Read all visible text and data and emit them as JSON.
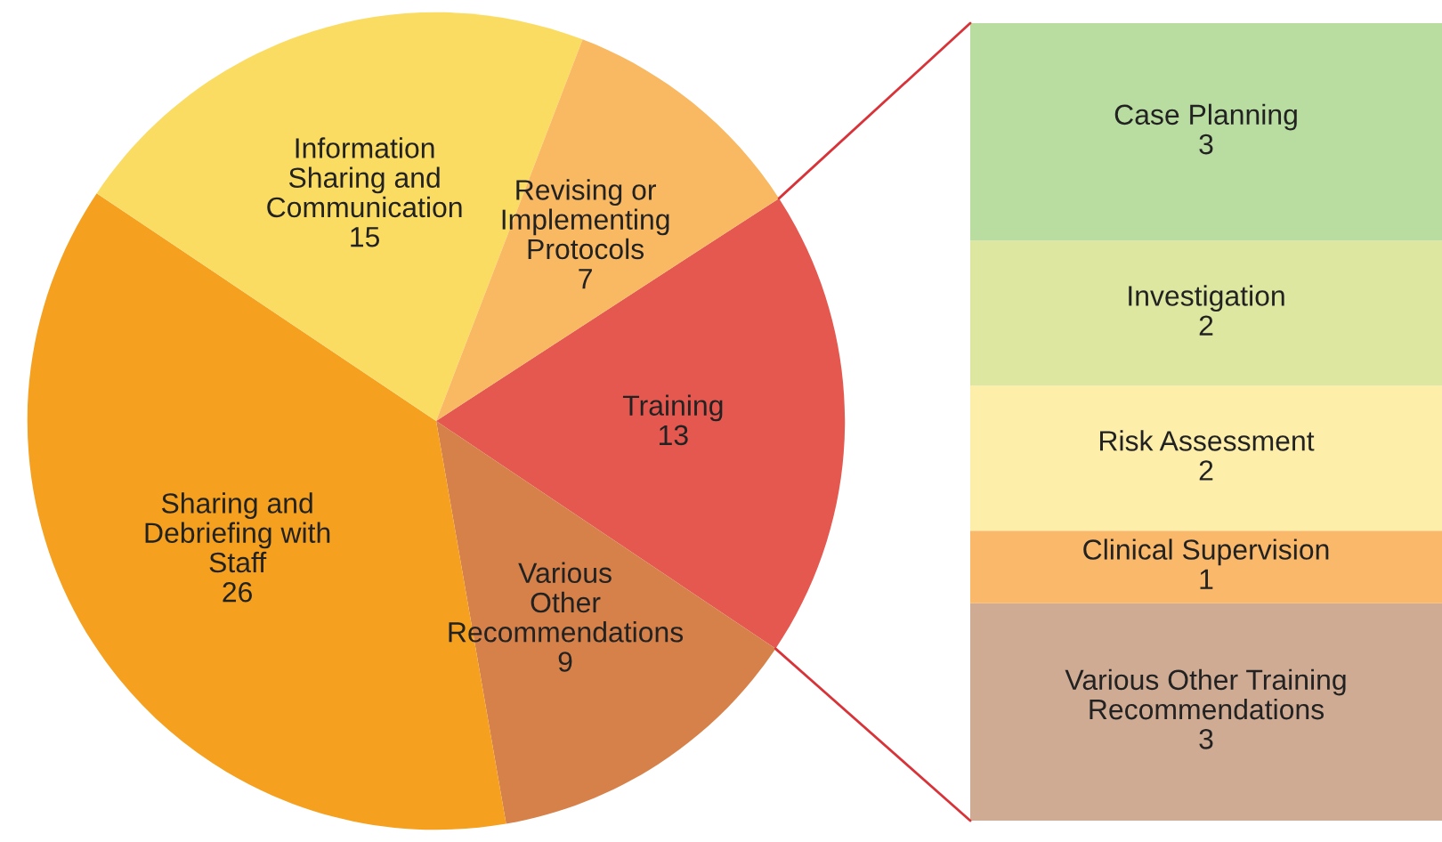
{
  "chart_data": [
    {
      "type": "pie",
      "categories": [
        "Training",
        "Various\nOther\nRecommendations",
        "Sharing and\nDebriefing with\nStaff",
        "Information\nSharing and\nCommunication",
        "Revising or\nImplementing\nProtocols"
      ],
      "values": [
        13,
        9,
        26,
        15,
        7
      ],
      "colors": [
        "#e5584f",
        "#d6804a",
        "#f5a11f",
        "#fbdc63",
        "#f9b862"
      ],
      "data_labels": true,
      "legend": false
    },
    {
      "type": "bar",
      "stacked": true,
      "categories": [
        null
      ],
      "data_labels": true,
      "legend": false,
      "tick_labels": false,
      "ylim": [
        0,
        11
      ],
      "series": [
        {
          "name": "Various Other Training\nRecommendations",
          "color": "#d0ab94",
          "values": [
            3
          ]
        },
        {
          "name": "Clinical Supervision",
          "color": "#f9b86a",
          "values": [
            1
          ]
        },
        {
          "name": "Risk Assessment",
          "color": "#fdeeaa",
          "values": [
            2
          ]
        },
        {
          "name": "Investigation",
          "color": "#dde7a0",
          "values": [
            2
          ]
        },
        {
          "name": "Case Planning",
          "color": "#b9dca0",
          "values": [
            3
          ]
        }
      ]
    }
  ]
}
